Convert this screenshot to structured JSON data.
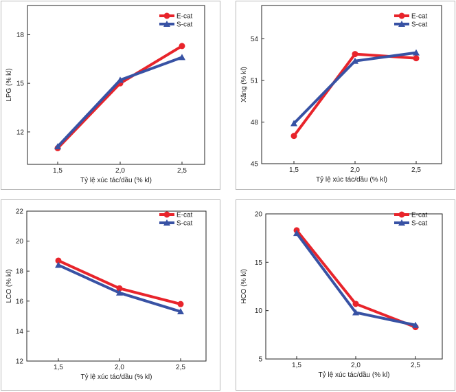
{
  "chart_data": [
    {
      "type": "line",
      "x_categories": [
        "1,5",
        "2,0",
        "2,5"
      ],
      "series": [
        {
          "name": "E-cat",
          "values": [
            11.0,
            15.0,
            17.3
          ],
          "color": "#e8242b",
          "marker": "circle"
        },
        {
          "name": "S-cat",
          "values": [
            11.1,
            15.2,
            16.6
          ],
          "color": "#3852a4",
          "marker": "triangle"
        }
      ],
      "xlabel": "Tỷ lệ xúc tác/dầu (% kl)",
      "ylabel": "LPG (% kl)",
      "yticks": [
        "12",
        "15",
        "18"
      ],
      "ytick_values": [
        12,
        15,
        18
      ],
      "ylim": [
        10.0,
        19.8
      ],
      "grid": false,
      "legend": "top-right"
    },
    {
      "type": "line",
      "x_categories": [
        "1,5",
        "2,0",
        "2,5"
      ],
      "series": [
        {
          "name": "E-cat",
          "values": [
            47.0,
            52.9,
            52.6
          ],
          "color": "#e8242b",
          "marker": "circle"
        },
        {
          "name": "S-cat",
          "values": [
            47.9,
            52.4,
            53.0
          ],
          "color": "#3852a4",
          "marker": "triangle"
        }
      ],
      "xlabel": "Tỷ lệ xúc tác/dầu (% kl)",
      "ylabel": "Xăng (% kl)",
      "yticks": [
        "45",
        "48",
        "51",
        "54"
      ],
      "ytick_values": [
        45,
        48,
        51,
        54
      ],
      "ylim": [
        45,
        56.4
      ],
      "grid": false,
      "legend": "top-right"
    },
    {
      "type": "line",
      "x_categories": [
        "1,5",
        "2,0",
        "2,5"
      ],
      "series": [
        {
          "name": "E-cat",
          "values": [
            18.7,
            16.85,
            15.8
          ],
          "color": "#e8242b",
          "marker": "circle"
        },
        {
          "name": "S-cat",
          "values": [
            18.4,
            16.55,
            15.3
          ],
          "color": "#3852a4",
          "marker": "triangle"
        }
      ],
      "xlabel": "Tỷ lệ xúc tác/dầu (% kl)",
      "ylabel": "LCO (% kl)",
      "yticks": [
        "12",
        "14",
        "16",
        "18",
        "20",
        "22"
      ],
      "ytick_values": [
        12,
        14,
        16,
        18,
        20,
        22
      ],
      "ylim": [
        12,
        22
      ],
      "grid": false,
      "legend": "top-right"
    },
    {
      "type": "line",
      "x_categories": [
        "1,5",
        "2,0",
        "2,5"
      ],
      "series": [
        {
          "name": "E-cat",
          "values": [
            18.3,
            10.7,
            8.3
          ],
          "color": "#e8242b",
          "marker": "circle"
        },
        {
          "name": "S-cat",
          "values": [
            18.0,
            9.8,
            8.5
          ],
          "color": "#3852a4",
          "marker": "triangle"
        }
      ],
      "xlabel": "Tỷ lệ xúc tác/dầu (% kl)",
      "ylabel": "HCO (% kl)",
      "yticks": [
        "5",
        "10",
        "15",
        "20"
      ],
      "ytick_values": [
        5,
        10,
        15,
        20
      ],
      "ylim": [
        5,
        20
      ],
      "grid": false,
      "legend": "top-right"
    }
  ]
}
